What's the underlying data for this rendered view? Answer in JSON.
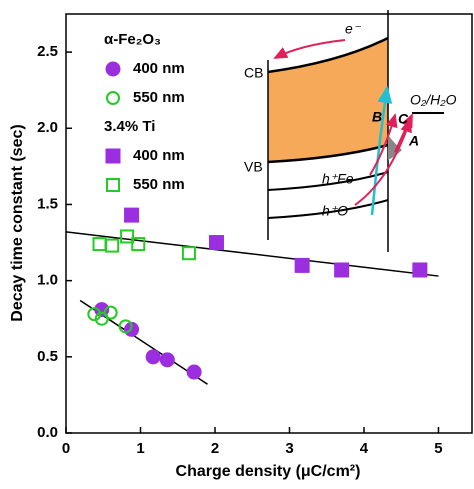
{
  "chart_data": {
    "type": "scatter",
    "xlabel": "Charge density (μC/cm²)",
    "ylabel": "Decay time constant (sec)",
    "xlim": [
      0,
      5.45
    ],
    "ylim": [
      0,
      2.75
    ],
    "xticks": [
      0,
      1,
      2,
      3,
      4,
      5
    ],
    "yticks": [
      {
        "value": 0,
        "label": "0.0"
      },
      0.5,
      {
        "value": 1,
        "label": "1.0"
      },
      1.5,
      {
        "value": 2,
        "label": "2.0"
      },
      2.5
    ],
    "legend_groups": [
      "α-Fe₂O₃",
      "3.4% Ti"
    ],
    "series": [
      {
        "name": "400 nm",
        "color": "#9b2fe0",
        "marker": "circle",
        "filled": true,
        "group": 0,
        "x": [
          0.48,
          0.88,
          1.17,
          1.36,
          1.72
        ],
        "values": [
          0.81,
          0.68,
          0.5,
          0.48,
          0.4
        ]
      },
      {
        "name": "550 nm",
        "color": "#22cc22",
        "marker": "circle",
        "filled": false,
        "group": 0,
        "x": [
          0.38,
          0.48,
          0.6,
          0.8
        ],
        "values": [
          0.78,
          0.75,
          0.79,
          0.7
        ]
      },
      {
        "name": "400 nm",
        "color": "#9b2fe0",
        "marker": "square",
        "filled": true,
        "group": 1,
        "x": [
          0.88,
          2.02,
          3.17,
          3.7,
          4.75
        ],
        "values": [
          1.43,
          1.25,
          1.1,
          1.07,
          1.07
        ]
      },
      {
        "name": "550 nm",
        "color": "#22cc22",
        "marker": "square",
        "filled": false,
        "group": 1,
        "x": [
          0.45,
          0.62,
          0.82,
          0.97,
          1.65
        ],
        "values": [
          1.24,
          1.23,
          1.29,
          1.24,
          1.18
        ]
      }
    ],
    "fits": [
      {
        "x": [
          0,
          5
        ],
        "values": [
          1.32,
          1.03
        ]
      },
      {
        "x": [
          0.19,
          1.9
        ],
        "values": [
          0.87,
          0.32
        ]
      }
    ],
    "inset": {
      "electron": "e⁻",
      "cb": "CB",
      "vb": "VB",
      "redox": "O₂/H₂O",
      "b": "B",
      "c": "C",
      "a": "A",
      "hole_fe": "h⁺Fe",
      "hole_o": "h⁺O"
    }
  }
}
